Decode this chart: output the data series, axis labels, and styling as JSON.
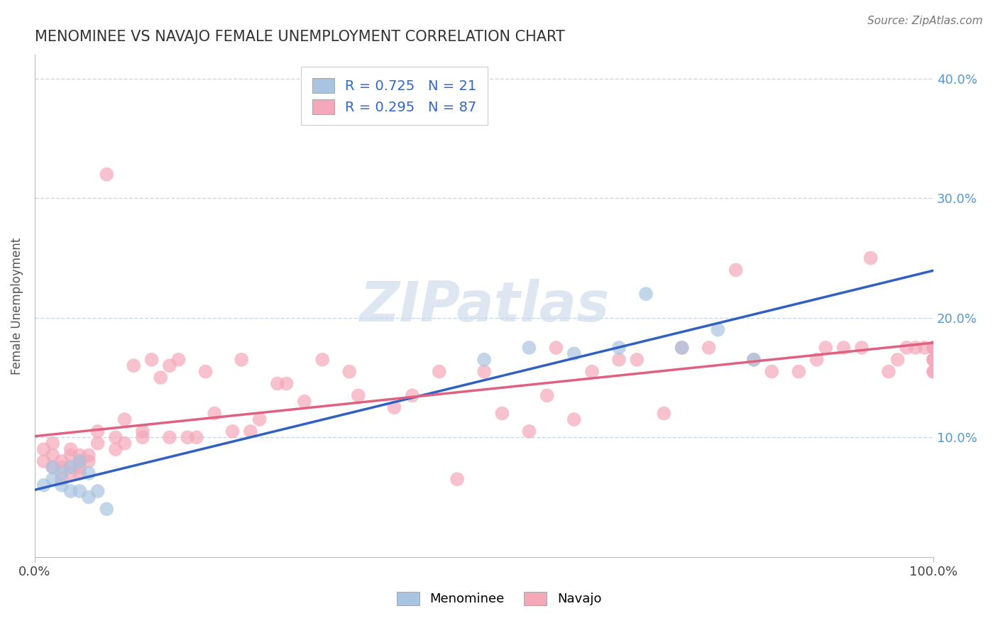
{
  "title": "MENOMINEE VS NAVAJO FEMALE UNEMPLOYMENT CORRELATION CHART",
  "source": "Source: ZipAtlas.com",
  "ylabel": "Female Unemployment",
  "xlim": [
    0.0,
    1.0
  ],
  "ylim": [
    0.0,
    0.42
  ],
  "ytick_labels": [
    "10.0%",
    "20.0%",
    "30.0%",
    "40.0%"
  ],
  "ytick_values": [
    0.1,
    0.2,
    0.3,
    0.4
  ],
  "R_menominee": 0.725,
  "N_menominee": 21,
  "R_navajo": 0.295,
  "N_navajo": 87,
  "menominee_color": "#a8c4e0",
  "navajo_color": "#f4a8b8",
  "menominee_line_color": "#3060c0",
  "navajo_line_color": "#e06080",
  "background_color": "#ffffff",
  "grid_color": "#c8d8e8",
  "watermark": "ZIPatlas",
  "menominee_x": [
    0.01,
    0.02,
    0.02,
    0.03,
    0.03,
    0.04,
    0.04,
    0.05,
    0.05,
    0.06,
    0.06,
    0.07,
    0.08,
    0.5,
    0.55,
    0.6,
    0.65,
    0.68,
    0.72,
    0.76,
    0.8
  ],
  "menominee_y": [
    0.06,
    0.075,
    0.065,
    0.07,
    0.06,
    0.075,
    0.055,
    0.08,
    0.055,
    0.05,
    0.07,
    0.055,
    0.04,
    0.165,
    0.175,
    0.17,
    0.175,
    0.22,
    0.175,
    0.19,
    0.165
  ],
  "navajo_x": [
    0.01,
    0.01,
    0.02,
    0.02,
    0.02,
    0.03,
    0.03,
    0.03,
    0.04,
    0.04,
    0.04,
    0.04,
    0.05,
    0.05,
    0.05,
    0.05,
    0.06,
    0.06,
    0.07,
    0.07,
    0.08,
    0.09,
    0.09,
    0.1,
    0.1,
    0.11,
    0.12,
    0.12,
    0.13,
    0.14,
    0.15,
    0.15,
    0.16,
    0.17,
    0.18,
    0.19,
    0.2,
    0.22,
    0.23,
    0.24,
    0.25,
    0.27,
    0.28,
    0.3,
    0.32,
    0.35,
    0.36,
    0.4,
    0.42,
    0.45,
    0.47,
    0.5,
    0.52,
    0.55,
    0.57,
    0.58,
    0.6,
    0.62,
    0.65,
    0.67,
    0.7,
    0.72,
    0.75,
    0.78,
    0.8,
    0.82,
    0.85,
    0.87,
    0.88,
    0.9,
    0.92,
    0.93,
    0.95,
    0.96,
    0.97,
    0.98,
    0.99,
    1.0,
    1.0,
    1.0,
    1.0,
    1.0,
    1.0,
    1.0,
    1.0,
    1.0,
    1.0
  ],
  "navajo_y": [
    0.08,
    0.09,
    0.075,
    0.085,
    0.095,
    0.075,
    0.065,
    0.08,
    0.07,
    0.075,
    0.085,
    0.09,
    0.07,
    0.075,
    0.08,
    0.085,
    0.08,
    0.085,
    0.095,
    0.105,
    0.32,
    0.09,
    0.1,
    0.095,
    0.115,
    0.16,
    0.105,
    0.1,
    0.165,
    0.15,
    0.16,
    0.1,
    0.165,
    0.1,
    0.1,
    0.155,
    0.12,
    0.105,
    0.165,
    0.105,
    0.115,
    0.145,
    0.145,
    0.13,
    0.165,
    0.155,
    0.135,
    0.125,
    0.135,
    0.155,
    0.065,
    0.155,
    0.12,
    0.105,
    0.135,
    0.175,
    0.115,
    0.155,
    0.165,
    0.165,
    0.12,
    0.175,
    0.175,
    0.24,
    0.165,
    0.155,
    0.155,
    0.165,
    0.175,
    0.175,
    0.175,
    0.25,
    0.155,
    0.165,
    0.175,
    0.175,
    0.175,
    0.155,
    0.165,
    0.155,
    0.165,
    0.165,
    0.175,
    0.175,
    0.175,
    0.175,
    0.175
  ]
}
